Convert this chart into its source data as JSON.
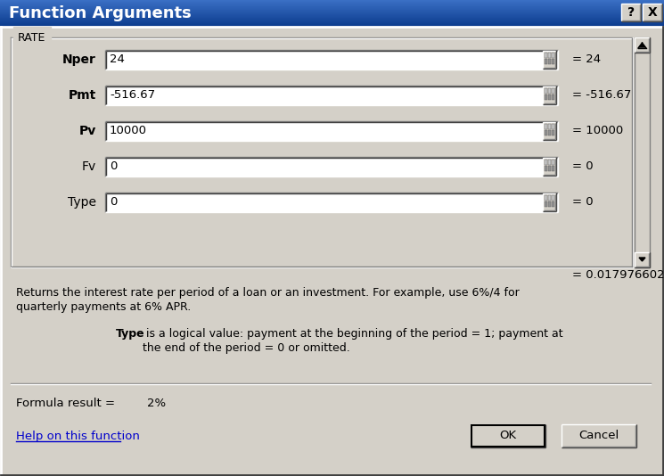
{
  "title": "Function Arguments",
  "title_bg_start": "#3a6fc4",
  "title_bg_end": "#0a3a8c",
  "title_fg": "#ffffff",
  "title_fontsize": 13,
  "dialog_bg": "#d4d0c8",
  "section_label": "RATE",
  "fields": [
    {
      "label": "Nper",
      "bold": true,
      "value": "24",
      "result": "= 24"
    },
    {
      "label": "Pmt",
      "bold": true,
      "value": "-516.67",
      "result": "= -516.67"
    },
    {
      "label": "Pv",
      "bold": true,
      "value": "10000",
      "result": "= 10000"
    },
    {
      "label": "Fv",
      "bold": false,
      "value": "0",
      "result": "= 0"
    },
    {
      "label": "Type",
      "bold": false,
      "value": "0",
      "result": "= 0"
    }
  ],
  "formula_result_label": "= 0.017976602",
  "description_line1": "Returns the interest rate per period of a loan or an investment. For example, use 6%/4 for",
  "description_line2": "quarterly payments at 6% APR.",
  "type_desc_bold": "Type",
  "type_desc_rest": " is a logical value: payment at the beginning of the period = 1; payment at",
  "type_desc_line2": "the end of the period = 0 or omitted.",
  "formula_result_text": "Formula result =",
  "formula_value": "2%",
  "help_link": "Help on this function",
  "btn_ok": "OK",
  "btn_cancel": "Cancel",
  "text_color": "#000000",
  "small_fontsize": 9.5,
  "field_fontsize": 9.5
}
